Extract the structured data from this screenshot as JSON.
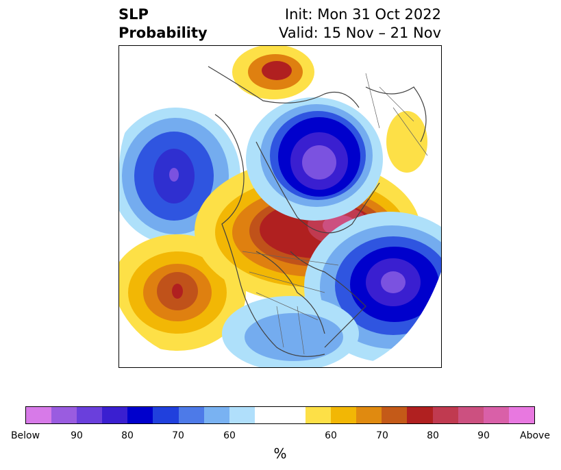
{
  "header": {
    "title_line1": "SLP",
    "title_line2": "Probability",
    "init_text": "Init: Mon 31 Oct 2022",
    "valid_text": "Valid: 15 Nov – 21 Nov"
  },
  "map": {
    "projection": "north-polar-stereographic",
    "colors": {
      "below_90plus": "#7b52e0",
      "below_80": "#2f2fd0",
      "below_70": "#1f3fe0",
      "below_60": "#74acef",
      "below_50": "#aee0fa",
      "above_50": "#fde047",
      "above_60": "#f2b705",
      "above_70": "#df8010",
      "above_80": "#c0521a",
      "above_90": "#b02020",
      "above_max": "#c84b8a",
      "coast": "#404040"
    }
  },
  "colorbar": {
    "colors": [
      "#d77ae8",
      "#9a5ce0",
      "#6a3fdc",
      "#3a1fd0",
      "#0000cc",
      "#2040dd",
      "#4d7ae8",
      "#79b2f2",
      "#b0dffb",
      "#ffffff",
      "#fde047",
      "#f2b705",
      "#e08a10",
      "#c45a18",
      "#b02020",
      "#c03a50",
      "#cc5080",
      "#d960a8",
      "#e878e0"
    ],
    "tick_labels": [
      "Below",
      "90",
      "80",
      "70",
      "60",
      "60",
      "70",
      "80",
      "90",
      "Above"
    ],
    "label": "%"
  }
}
